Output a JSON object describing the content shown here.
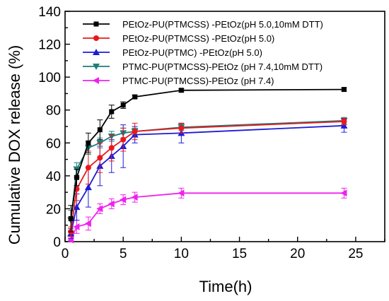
{
  "chart_data": {
    "type": "line",
    "xlabel": "Time(h)",
    "ylabel": "Cumulative DOX release (%)",
    "xlim": [
      0,
      27.5
    ],
    "ylim": [
      0,
      140
    ],
    "xticks": [
      0,
      5,
      10,
      15,
      20,
      25
    ],
    "yticks": [
      0,
      20,
      40,
      60,
      80,
      100,
      120,
      140
    ],
    "x": [
      0.5,
      1,
      2,
      3,
      4,
      5,
      6,
      10,
      24
    ],
    "grid": false,
    "legend_position": "top-right",
    "series": [
      {
        "name": "PEtOz-PU(PTMCSS) -PEtOz(pH 5.0,10mM DTT)",
        "marker": "square",
        "color": "#000000",
        "values": [
          14,
          39,
          60,
          68,
          79,
          83,
          88,
          92,
          92.5
        ],
        "errors": [
          8,
          5,
          6,
          6,
          4,
          2,
          1,
          1,
          1
        ]
      },
      {
        "name": "PEtOz-PU(PTMCSS) -PEtOz(pH 5.0)",
        "marker": "circle",
        "color": "#e8191e",
        "values": [
          6,
          32,
          45,
          51,
          57,
          62,
          67,
          69,
          73
        ],
        "errors": [
          3,
          7,
          10,
          9,
          8,
          7,
          5,
          3,
          2
        ]
      },
      {
        "name": "PEtOz-PU(PTMC) -PEtOz(pH 5.0)",
        "marker": "triangle-up",
        "color": "#1c1cd8",
        "values": [
          5,
          21,
          33,
          46,
          52,
          58,
          65,
          66,
          70.5
        ],
        "errors": [
          3,
          8,
          12,
          12,
          10,
          13,
          5,
          6,
          4
        ]
      },
      {
        "name": "PTMC-PU(PTMCSS)-PEtOz (pH 7.4,10mM DTT)",
        "marker": "triangle-down",
        "color": "#1f7d79",
        "values": [
          13,
          44,
          57,
          60,
          64,
          66,
          67,
          69.5,
          73.5
        ],
        "errors": [
          6,
          4,
          4,
          3,
          3,
          3,
          2,
          2,
          2
        ]
      },
      {
        "name": "PTMC-PU(PTMCSS)-PEtOz (pH 7.4)",
        "marker": "triangle-left",
        "color": "#ee22ee",
        "values": [
          1,
          9,
          11,
          20,
          23,
          25.5,
          27,
          29.5,
          29.5
        ],
        "errors": [
          1,
          4,
          4,
          3,
          3,
          3,
          3,
          3,
          3
        ]
      }
    ]
  }
}
